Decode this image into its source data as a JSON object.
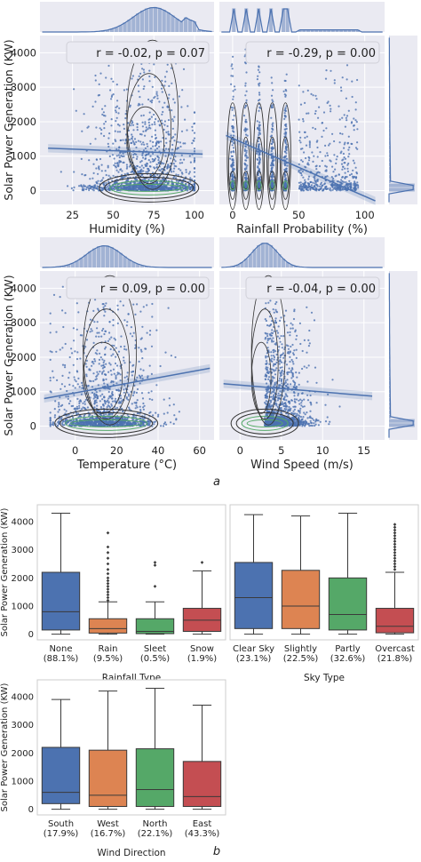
{
  "figure": {
    "panel_a_caption": "a",
    "panel_b_caption": "b",
    "colors": {
      "scatter": "#4c72b0",
      "panel_bg": "#eaeaf2",
      "grid": "#ffffff",
      "kde_dark": "#333333",
      "kde_green": "#55a868",
      "box_blue": "#4c72b0",
      "box_orange": "#dd8452",
      "box_green": "#55a868",
      "box_red": "#c44e52"
    }
  },
  "chart_data": [
    {
      "type": "scatter",
      "xlabel": "Humidity (%)",
      "ylabel": "Solar Power Generation (KW)",
      "annotation": "r = -0.02, p = 0.07",
      "xticks": [
        25,
        50,
        75,
        100
      ],
      "yticks": [
        0,
        1000,
        2000,
        3000,
        4000
      ],
      "xlim": [
        5,
        112
      ],
      "ylim": [
        -400,
        4500
      ],
      "regression": {
        "x": [
          10,
          105
        ],
        "y": [
          1230,
          1060
        ]
      },
      "marginal_x": "histogram + kde",
      "grid": true
    },
    {
      "type": "scatter",
      "xlabel": "Rainfall Probability (%)",
      "ylabel": "",
      "annotation": "r = -0.29, p = 0.00",
      "xticks": [
        0,
        50,
        100
      ],
      "yticks": [
        0,
        1000,
        2000,
        3000,
        4000
      ],
      "xlim": [
        -10,
        115
      ],
      "ylim": [
        -400,
        4500
      ],
      "regression": {
        "x": [
          -5,
          108
        ],
        "y": [
          1600,
          -300
        ]
      },
      "marginal_x": "histogram + kde",
      "marginal_y": "histogram + kde",
      "grid": true
    },
    {
      "type": "scatter",
      "xlabel": "Temperature (°C)",
      "ylabel": "Solar Power Generation (KW)",
      "annotation": "r = 0.09, p = 0.00",
      "xticks": [
        0,
        20,
        40,
        60
      ],
      "yticks": [
        0,
        1000,
        2000,
        3000,
        4000
      ],
      "xlim": [
        -17,
        67
      ],
      "ylim": [
        -400,
        4500
      ],
      "regression": {
        "x": [
          -15,
          65
        ],
        "y": [
          800,
          1680
        ]
      },
      "marginal_x": "histogram + kde",
      "grid": true
    },
    {
      "type": "scatter",
      "xlabel": "Wind Speed (m/s)",
      "ylabel": "",
      "annotation": "r = -0.04, p = 0.00",
      "xticks": [
        0,
        5,
        10,
        15
      ],
      "yticks": [
        0,
        1000,
        2000,
        3000,
        4000
      ],
      "xlim": [
        -2.5,
        17.5
      ],
      "ylim": [
        -400,
        4500
      ],
      "regression": {
        "x": [
          -2,
          16
        ],
        "y": [
          1230,
          870
        ]
      },
      "marginal_x": "histogram + kde",
      "marginal_y": "histogram + kde",
      "grid": true
    },
    {
      "type": "box",
      "xlabel": "Rainfall Type",
      "ylabel": "Solar Power Generation (KW)",
      "ylim": [
        -200,
        4600
      ],
      "yticks": [
        0,
        1000,
        2000,
        3000,
        4000
      ],
      "categories": [
        "None\n(88.1%)",
        "Rain\n(9.5%)",
        "Sleet\n(0.5%)",
        "Snow\n(1.9%)"
      ],
      "boxes": [
        {
          "q1": 150,
          "median": 800,
          "q3": 2200,
          "low": 0,
          "high": 4300,
          "outliers": []
        },
        {
          "q1": 40,
          "median": 200,
          "q3": 550,
          "low": 0,
          "high": 1150,
          "outliers": [
            1200,
            1300,
            1400,
            1500,
            1600,
            1700,
            1800,
            1900,
            2000,
            2150,
            2300,
            2500,
            2700,
            2900,
            3100,
            3600
          ]
        },
        {
          "q1": 20,
          "median": 100,
          "q3": 550,
          "low": 0,
          "high": 1150,
          "outliers": [
            1700,
            2450,
            2550
          ]
        },
        {
          "q1": 100,
          "median": 500,
          "q3": 920,
          "low": 0,
          "high": 2250,
          "outliers": [
            2550
          ]
        }
      ],
      "colors": [
        "#4c72b0",
        "#dd8452",
        "#55a868",
        "#c44e52"
      ]
    },
    {
      "type": "box",
      "xlabel": "Sky Type",
      "ylabel": "",
      "ylim": [
        -200,
        4600
      ],
      "yticks": [],
      "categories": [
        "Clear Sky\n(23.1%)",
        "Slightly\n(22.5%)",
        "Partly\n(32.6%)",
        "Overcast\n(21.8%)"
      ],
      "boxes": [
        {
          "q1": 200,
          "median": 1300,
          "q3": 2550,
          "low": 0,
          "high": 4250,
          "outliers": []
        },
        {
          "q1": 200,
          "median": 1000,
          "q3": 2270,
          "low": 0,
          "high": 4200,
          "outliers": []
        },
        {
          "q1": 150,
          "median": 700,
          "q3": 2000,
          "low": 0,
          "high": 4300,
          "outliers": []
        },
        {
          "q1": 50,
          "median": 280,
          "q3": 920,
          "low": 0,
          "high": 2200,
          "outliers": [
            2300,
            2400,
            2500,
            2600,
            2700,
            2800,
            2900,
            3000,
            3100,
            3200,
            3300,
            3400,
            3500,
            3600,
            3700,
            3800,
            3900
          ]
        }
      ],
      "colors": [
        "#4c72b0",
        "#dd8452",
        "#55a868",
        "#c44e52"
      ]
    },
    {
      "type": "box",
      "xlabel": "Wind Direction",
      "ylabel": "Solar Power Generation (KW)",
      "ylim": [
        -200,
        4600
      ],
      "yticks": [
        0,
        1000,
        2000,
        3000,
        4000
      ],
      "categories": [
        "South\n(17.9%)",
        "West\n(16.7%)",
        "North\n(22.1%)",
        "East\n(43.3%)"
      ],
      "boxes": [
        {
          "q1": 200,
          "median": 600,
          "q3": 2200,
          "low": 0,
          "high": 3900,
          "outliers": []
        },
        {
          "q1": 100,
          "median": 500,
          "q3": 2100,
          "low": 0,
          "high": 4200,
          "outliers": []
        },
        {
          "q1": 100,
          "median": 700,
          "q3": 2150,
          "low": 0,
          "high": 4300,
          "outliers": []
        },
        {
          "q1": 100,
          "median": 450,
          "q3": 1700,
          "low": 0,
          "high": 3700,
          "outliers": []
        }
      ],
      "colors": [
        "#4c72b0",
        "#dd8452",
        "#55a868",
        "#c44e52"
      ]
    }
  ]
}
